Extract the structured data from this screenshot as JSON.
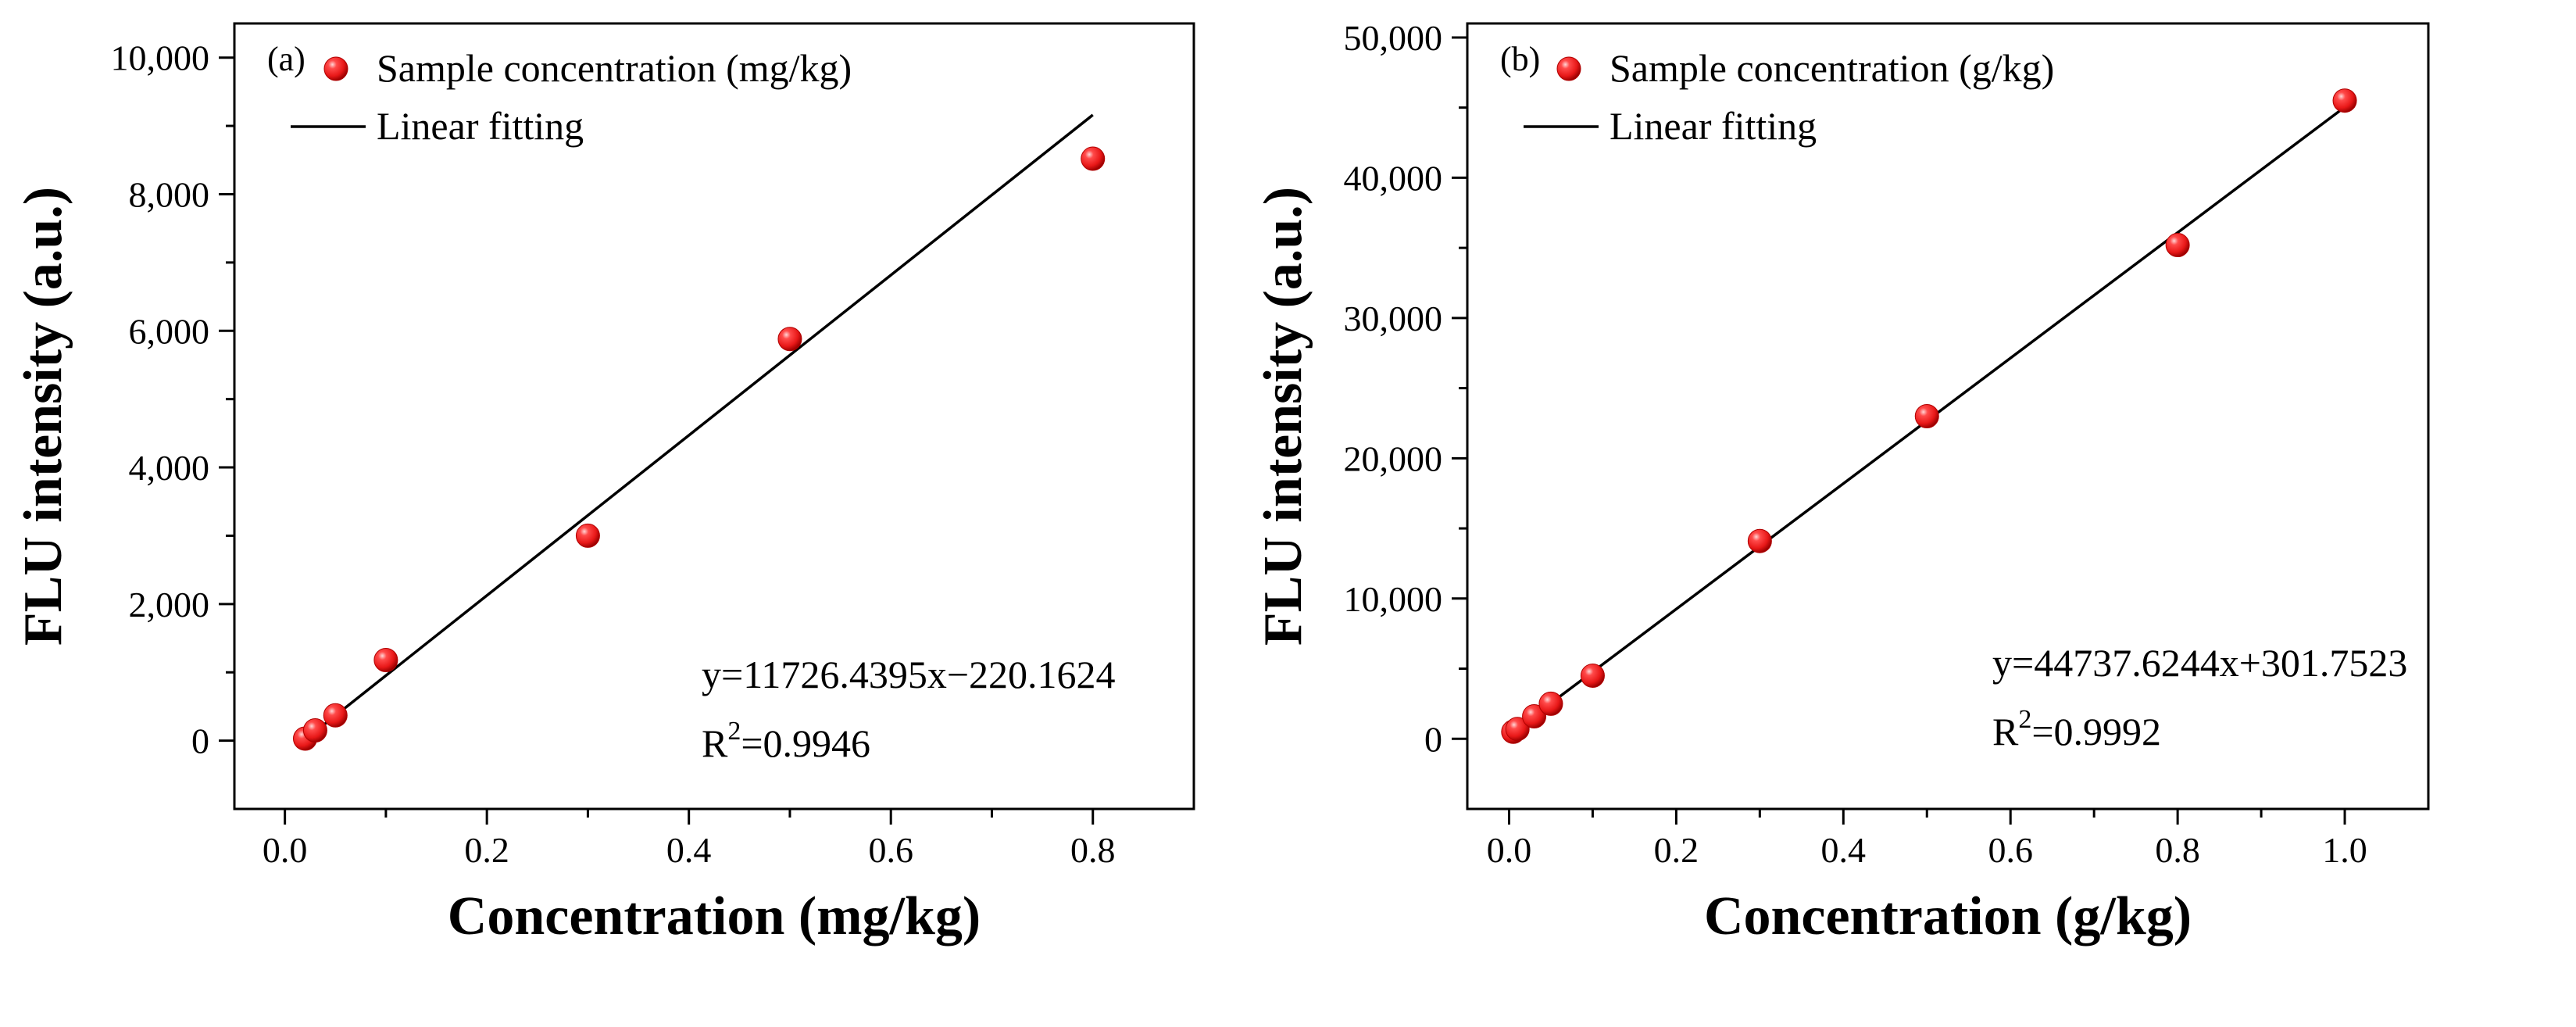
{
  "chart_data": [
    {
      "type": "scatter",
      "panel_label": "(a)",
      "xlabel": "Concentration (mg/kg)",
      "ylabel": "FLU intensity (a.u.)",
      "xlim": [
        -0.05,
        0.9
      ],
      "ylim": [
        -1000,
        10500
      ],
      "x_ticks": [
        0.0,
        0.2,
        0.4,
        0.6,
        0.8
      ],
      "x_tick_labels": [
        "0.0",
        "0.2",
        "0.4",
        "0.6",
        "0.8"
      ],
      "y_ticks": [
        0,
        2000,
        4000,
        6000,
        8000,
        10000
      ],
      "y_tick_labels": [
        "0",
        "2,000",
        "4,000",
        "6,000",
        "8,000",
        "10,000"
      ],
      "series": [
        {
          "name": "Sample concentration (mg/kg)",
          "kind": "scatter",
          "color": "#e81818",
          "x": [
            0.02,
            0.03,
            0.05,
            0.1,
            0.3,
            0.5,
            0.8
          ],
          "y": [
            30,
            150,
            370,
            1180,
            3000,
            5880,
            8520
          ]
        },
        {
          "name": "Linear fitting",
          "kind": "line",
          "color": "#000000",
          "slope": 11726.4395,
          "intercept": -220.1624,
          "x_range": [
            0.02,
            0.8
          ]
        }
      ],
      "equation": "y=11726.4395x−220.1624",
      "r2_prefix": "R",
      "r2_sup": "2",
      "r2_value": "=0.9946",
      "legend_position": "top-left"
    },
    {
      "type": "scatter",
      "panel_label": "(b)",
      "xlabel": "Concentration (g/kg)",
      "ylabel": "FLU intensity (a.u.)",
      "xlim": [
        -0.05,
        1.1
      ],
      "ylim": [
        -5000,
        51000
      ],
      "x_ticks": [
        0.0,
        0.2,
        0.4,
        0.6,
        0.8,
        1.0
      ],
      "x_tick_labels": [
        "0.0",
        "0.2",
        "0.4",
        "0.6",
        "0.8",
        "1.0"
      ],
      "y_ticks": [
        0,
        10000,
        20000,
        30000,
        40000,
        50000
      ],
      "y_tick_labels": [
        "0",
        "10,000",
        "20,000",
        "30,000",
        "40,000",
        "50,000"
      ],
      "series": [
        {
          "name": "Sample concentration (g/kg)",
          "kind": "scatter",
          "color": "#e81818",
          "x": [
            0.005,
            0.01,
            0.03,
            0.05,
            0.1,
            0.3,
            0.5,
            0.8,
            1.0
          ],
          "y": [
            500,
            700,
            1600,
            2500,
            4500,
            14100,
            23000,
            35200,
            45500
          ]
        },
        {
          "name": "Linear fitting",
          "kind": "line",
          "color": "#000000",
          "slope": 44737.6244,
          "intercept": 301.7523,
          "x_range": [
            0.005,
            1.0
          ]
        }
      ],
      "equation": "y=44737.6244x+301.7523",
      "r2_prefix": "R",
      "r2_sup": "2",
      "r2_value": "=0.9992",
      "legend_position": "top-left"
    }
  ]
}
